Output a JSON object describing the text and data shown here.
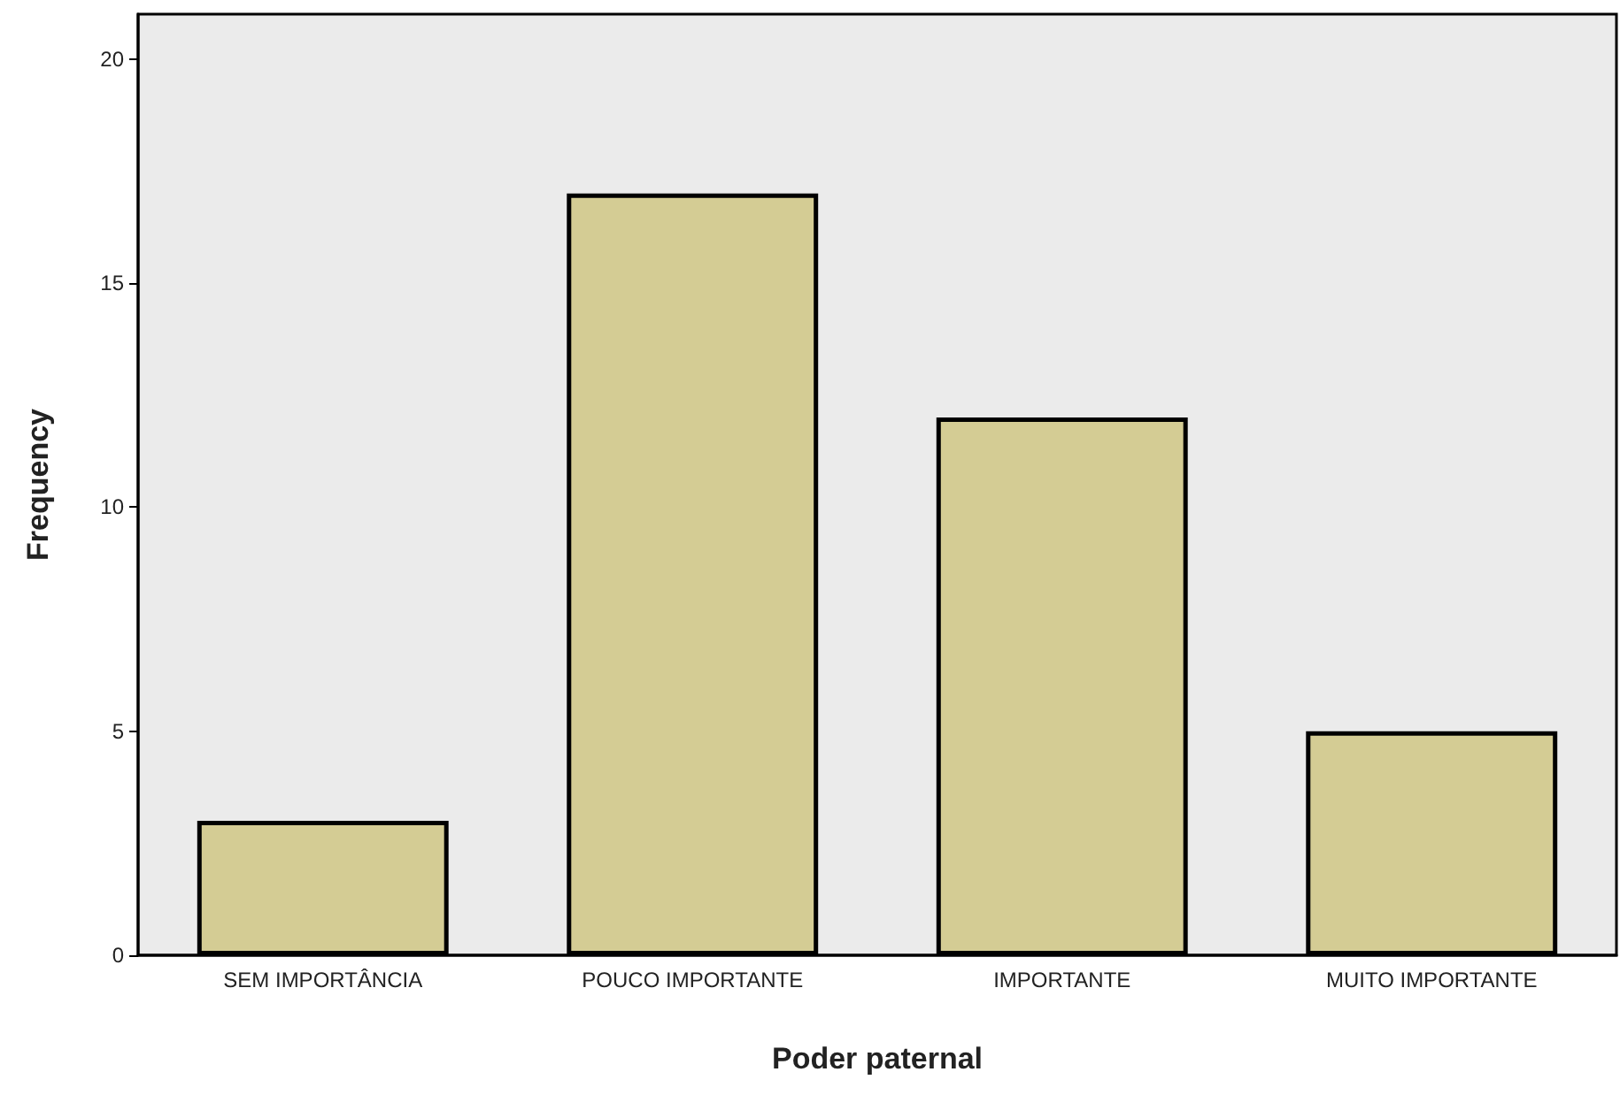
{
  "chart_data": {
    "type": "bar",
    "xlabel": "Poder paternal",
    "ylabel": "Frequency",
    "categories": [
      "SEM IMPORTÂNCIA",
      "POUCO IMPORTANTE",
      "IMPORTANTE",
      "MUITO IMPORTANTE"
    ],
    "values": [
      3,
      17,
      12,
      5
    ],
    "color": "#d4cc94",
    "ylim": [
      0,
      21
    ],
    "yticks": [
      0,
      5,
      10,
      15,
      20
    ],
    "grid": false
  }
}
